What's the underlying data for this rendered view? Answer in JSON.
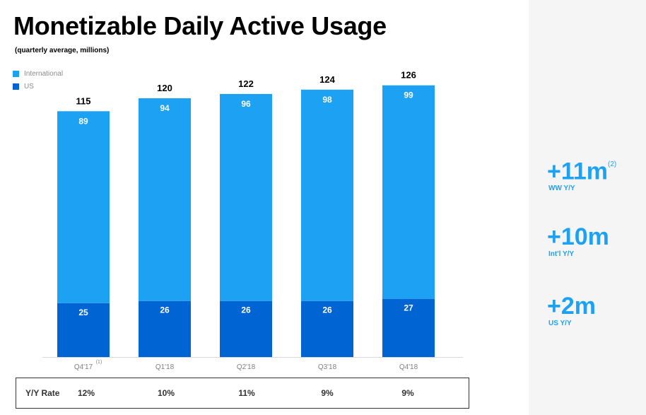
{
  "title": "Monetizable Daily Active Usage",
  "subtitle": "(quarterly average, millions)",
  "chart_data": {
    "type": "bar",
    "stacked": true,
    "categories": [
      "Q4'17",
      "Q1'18",
      "Q2'18",
      "Q3'18",
      "Q4'18"
    ],
    "category_notes": [
      "(1)",
      "",
      "",
      "",
      ""
    ],
    "series": [
      {
        "name": "US",
        "values": [
          25,
          26,
          26,
          26,
          27
        ],
        "color": "#0064d2"
      },
      {
        "name": "International",
        "values": [
          89,
          94,
          96,
          98,
          99
        ],
        "color": "#1da1f2"
      }
    ],
    "totals": [
      115,
      120,
      122,
      124,
      126
    ],
    "legend_order": [
      "International",
      "US"
    ],
    "legend_position": "top-left",
    "ylim": [
      0,
      130
    ],
    "grid": false
  },
  "yoy": {
    "label": "Y/Y Rate",
    "values": [
      "12%",
      "10%",
      "11%",
      "9%",
      "9%"
    ]
  },
  "side_stats": [
    {
      "value": "+11m",
      "note": "(2)",
      "label": "WW Y/Y"
    },
    {
      "value": "+10m",
      "note": "",
      "label": "Int'l Y/Y"
    },
    {
      "value": "+2m",
      "note": "",
      "label": "US Y/Y"
    }
  ],
  "colors": {
    "accent": "#1da1f2",
    "international": "#1da1f2",
    "us": "#0064d2",
    "side_panel_bg": "#f5f5f5"
  }
}
